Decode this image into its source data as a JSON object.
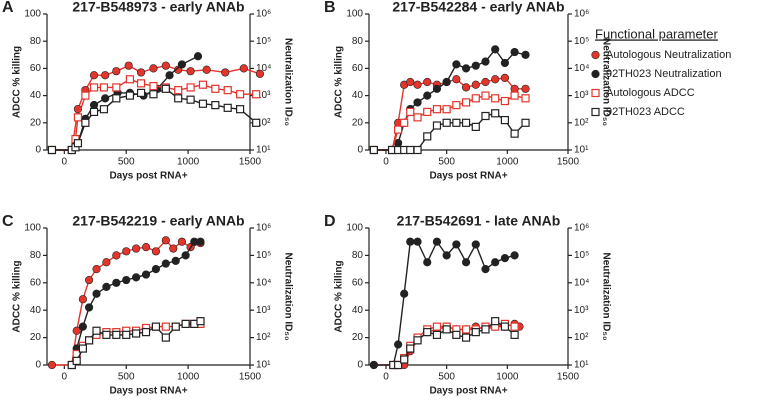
{
  "chart_data": [
    {
      "type": "line",
      "panel": "A",
      "title": "217-B548973 - early ANAb",
      "legend_title": "Functional parameter",
      "xlabel": "Days post RNA+",
      "ylabel": "ADCC % killing",
      "y2label": "Neutralization ID₅₀",
      "xlim": [
        -140,
        1500
      ],
      "xticks": [
        0,
        500,
        1000,
        1500
      ],
      "ylim": [
        0,
        100
      ],
      "yticks": [
        0,
        20,
        40,
        60,
        80,
        100
      ],
      "y2lim": [
        10,
        1000000
      ],
      "y2scale": "log",
      "y2ticks": [
        {
          "value": 10,
          "label": "10¹"
        },
        {
          "value": 100,
          "label": "10²"
        },
        {
          "value": 1000,
          "label": "10³"
        },
        {
          "value": 10000,
          "label": "10⁴"
        },
        {
          "value": 100000,
          "label": "10⁵"
        },
        {
          "value": 1000000,
          "label": "10⁶"
        }
      ],
      "series": [
        {
          "name": "Autologous Neutralization",
          "color": "#e2352b",
          "marker": "filled-circle",
          "axis": "y2",
          "x": [
            -100,
            60,
            110,
            170,
            240,
            330,
            420,
            520,
            620,
            720,
            820,
            920,
            1020,
            1150,
            1300,
            1450,
            1580
          ],
          "values": [
            10,
            10,
            320,
            1600,
            5600,
            5600,
            7900,
            12600,
            7100,
            10000,
            12600,
            8900,
            7900,
            8900,
            7100,
            10000,
            6300
          ]
        },
        {
          "name": "92TH023 Neutralization",
          "color": "#222222",
          "marker": "filled-circle",
          "axis": "y2",
          "x": [
            -100,
            60,
            110,
            170,
            240,
            330,
            430,
            530,
            640,
            750,
            850,
            950,
            1080
          ],
          "values": [
            10,
            10,
            18,
            140,
            450,
            790,
            1260,
            1260,
            1000,
            1780,
            5600,
            14000,
            28000
          ]
        },
        {
          "name": "Autologous ADCC",
          "color": "#e2352b",
          "marker": "open-square",
          "x": [
            -100,
            60,
            90,
            110,
            170,
            240,
            320,
            420,
            530,
            620,
            720,
            820,
            920,
            1020,
            1120,
            1220,
            1320,
            1420,
            1550
          ],
          "values": [
            0,
            0,
            8,
            24,
            40,
            46,
            46,
            46,
            52,
            49,
            47,
            46,
            44,
            46,
            48,
            45,
            44,
            41,
            41
          ]
        },
        {
          "name": "92TH023 ADCC",
          "color": "#222222",
          "marker": "open-square",
          "x": [
            -100,
            60,
            90,
            110,
            170,
            240,
            320,
            420,
            530,
            620,
            720,
            820,
            920,
            1020,
            1120,
            1220,
            1320,
            1420,
            1550
          ],
          "values": [
            0,
            0,
            2,
            5,
            20,
            28,
            30,
            38,
            40,
            42,
            41,
            45,
            38,
            37,
            34,
            33,
            31,
            30,
            20
          ]
        }
      ]
    },
    {
      "type": "line",
      "panel": "B",
      "title": "217-B542284 - early ANAb",
      "xlabel": "Days post RNA+",
      "ylabel": "ADCC % killing",
      "y2label": "Neutralization ID₅₀",
      "xlim": [
        -140,
        1500
      ],
      "xticks": [
        0,
        500,
        1000,
        1500
      ],
      "ylim": [
        0,
        100
      ],
      "yticks": [
        0,
        20,
        40,
        60,
        80,
        100
      ],
      "y2lim": [
        10,
        1000000
      ],
      "y2scale": "log",
      "y2ticks": [
        {
          "value": 10,
          "label": "10¹"
        },
        {
          "value": 100,
          "label": "10²"
        },
        {
          "value": 1000,
          "label": "10³"
        },
        {
          "value": 10000,
          "label": "10⁴"
        },
        {
          "value": 100000,
          "label": "10⁵"
        },
        {
          "value": 1000000,
          "label": "10⁶"
        }
      ],
      "series": [
        {
          "name": "Autologous Neutralization",
          "color": "#e2352b",
          "marker": "filled-circle",
          "axis": "y2",
          "x": [
            -100,
            50,
            100,
            150,
            200,
            260,
            340,
            420,
            500,
            580,
            660,
            740,
            820,
            900,
            980,
            1060,
            1150
          ],
          "values": [
            10,
            10,
            100,
            2500,
            3160,
            2500,
            3160,
            2500,
            3160,
            3980,
            2000,
            2500,
            3160,
            3980,
            4470,
            1780,
            1780
          ]
        },
        {
          "name": "92TH023 Neutralization",
          "color": "#222222",
          "marker": "filled-circle",
          "axis": "y2",
          "x": [
            -100,
            50,
            100,
            150,
            200,
            260,
            340,
            420,
            500,
            580,
            660,
            740,
            820,
            900,
            980,
            1060,
            1150
          ],
          "values": [
            10,
            10,
            18,
            100,
            320,
            560,
            1000,
            1780,
            3160,
            14100,
            10000,
            12600,
            17800,
            50100,
            15800,
            39800,
            31600
          ]
        },
        {
          "name": "Autologous ADCC",
          "color": "#e2352b",
          "marker": "open-square",
          "x": [
            -100,
            50,
            100,
            150,
            200,
            260,
            340,
            420,
            500,
            580,
            660,
            740,
            820,
            900,
            980,
            1060,
            1150
          ],
          "values": [
            0,
            0,
            15,
            20,
            28,
            24,
            28,
            30,
            30,
            33,
            35,
            38,
            40,
            38,
            36,
            40,
            38
          ]
        },
        {
          "name": "92TH023 ADCC",
          "color": "#222222",
          "marker": "open-square",
          "x": [
            -100,
            50,
            100,
            150,
            200,
            260,
            340,
            420,
            500,
            580,
            660,
            740,
            820,
            900,
            980,
            1060,
            1150
          ],
          "values": [
            0,
            0,
            0,
            0,
            0,
            0,
            10,
            18,
            20,
            20,
            20,
            17,
            25,
            27,
            22,
            12,
            20
          ]
        }
      ]
    },
    {
      "type": "line",
      "panel": "C",
      "title": "217-B542219 - early ANAb",
      "xlabel": "Days post RNA+",
      "ylabel": "ADCC % killing",
      "y2label": "Neutralization ID₅₀",
      "xlim": [
        -140,
        1500
      ],
      "xticks": [
        0,
        500,
        1000,
        1500
      ],
      "ylim": [
        0,
        100
      ],
      "yticks": [
        0,
        20,
        40,
        60,
        80,
        100
      ],
      "y2lim": [
        10,
        1000000
      ],
      "y2scale": "log",
      "y2ticks": [
        {
          "value": 10,
          "label": "10¹"
        },
        {
          "value": 100,
          "label": "10²"
        },
        {
          "value": 1000,
          "label": "10³"
        },
        {
          "value": 10000,
          "label": "10⁴"
        },
        {
          "value": 100000,
          "label": "10⁵"
        },
        {
          "value": 1000000,
          "label": "10⁶"
        }
      ],
      "series": [
        {
          "name": "Autologous Neutralization",
          "color": "#e2352b",
          "marker": "filled-circle",
          "axis": "y2",
          "x": [
            -100,
            60,
            100,
            150,
            200,
            260,
            340,
            420,
            500,
            580,
            660,
            740,
            820,
            880,
            950,
            1020,
            1100
          ],
          "values": [
            10,
            10,
            178,
            2510,
            12600,
            31600,
            56200,
            100000,
            141000,
            178000,
            200000,
            141000,
            355000,
            178000,
            316000,
            200000,
            282000
          ]
        },
        {
          "name": "92TH023 Neutralization",
          "color": "#222222",
          "marker": "filled-circle",
          "axis": "y2",
          "x": [
            60,
            100,
            150,
            200,
            260,
            340,
            420,
            500,
            580,
            660,
            740,
            820,
            900,
            980,
            1050,
            1100
          ],
          "values": [
            10,
            40,
            251,
            1260,
            3980,
            7080,
            10000,
            12600,
            15800,
            20000,
            31600,
            50100,
            63100,
            100000,
            316000,
            316000
          ]
        },
        {
          "name": "Autologous ADCC",
          "color": "#e2352b",
          "marker": "open-square",
          "x": [
            60,
            100,
            150,
            200,
            260,
            340,
            420,
            500,
            580,
            660,
            740,
            820,
            900,
            980,
            1050,
            1100
          ],
          "values": [
            0,
            8,
            14,
            18,
            22,
            24,
            24,
            25,
            25,
            27,
            28,
            28,
            28,
            30,
            30,
            30
          ]
        },
        {
          "name": "92TH023 ADCC",
          "color": "#222222",
          "marker": "open-square",
          "x": [
            60,
            100,
            150,
            200,
            260,
            340,
            420,
            500,
            580,
            660,
            740,
            820,
            900,
            980,
            1050,
            1100
          ],
          "values": [
            0,
            3,
            12,
            18,
            25,
            22,
            22,
            22,
            23,
            24,
            28,
            20,
            28,
            30,
            30,
            32
          ]
        }
      ]
    },
    {
      "type": "line",
      "panel": "D",
      "title": "217-B542691 - late ANAb",
      "xlabel": "Days post RNA+",
      "ylabel": "ADCC % killing",
      "y2label": "Neutralization ID₅₀",
      "xlim": [
        -140,
        1500
      ],
      "xticks": [
        0,
        500,
        1000,
        1500
      ],
      "ylim": [
        0,
        100
      ],
      "yticks": [
        0,
        20,
        40,
        60,
        80,
        100
      ],
      "y2lim": [
        10,
        1000000
      ],
      "y2scale": "log",
      "y2ticks": [
        {
          "value": 10,
          "label": "10¹"
        },
        {
          "value": 100,
          "label": "10²"
        },
        {
          "value": 1000,
          "label": "10³"
        },
        {
          "value": 10000,
          "label": "10⁴"
        },
        {
          "value": 100000,
          "label": "10⁵"
        },
        {
          "value": 1000000,
          "label": "10⁶"
        }
      ],
      "series": [
        {
          "name": "Autologous Neutralization",
          "color": "#e2352b",
          "marker": "filled-circle",
          "axis": "y2",
          "x": [
            -100,
            60,
            100,
            150,
            200,
            260,
            340,
            420,
            500,
            580,
            660,
            740,
            820,
            900,
            980,
            1060,
            1100
          ],
          "values": [
            10,
            10,
            10,
            10,
            32,
            79,
            158,
            200,
            251,
            200,
            200,
            251,
            200,
            251,
            251,
            316,
            251
          ]
        },
        {
          "name": "92TH023 Neutralization",
          "color": "#222222",
          "marker": "filled-circle",
          "axis": "y2",
          "x": [
            -100,
            60,
            100,
            150,
            200,
            260,
            340,
            420,
            500,
            580,
            660,
            740,
            820,
            900,
            980,
            1060
          ],
          "values": [
            10,
            10,
            56,
            3980,
            316000,
            316000,
            56200,
            316000,
            100000,
            251000,
            56200,
            251000,
            31600,
            56200,
            79400,
            100000
          ]
        },
        {
          "name": "Autologous ADCC",
          "color": "#e2352b",
          "marker": "open-square",
          "x": [
            60,
            100,
            150,
            200,
            260,
            340,
            420,
            500,
            580,
            660,
            740,
            820,
            900,
            980,
            1060
          ],
          "values": [
            0,
            0,
            5,
            14,
            20,
            26,
            28,
            28,
            26,
            26,
            26,
            28,
            28,
            30,
            28
          ]
        },
        {
          "name": "92TH023 ADCC",
          "color": "#222222",
          "marker": "open-square",
          "x": [
            60,
            100,
            150,
            200,
            260,
            340,
            420,
            500,
            580,
            660,
            740,
            820,
            900,
            980,
            1060
          ],
          "values": [
            0,
            0,
            4,
            12,
            18,
            24,
            22,
            26,
            22,
            20,
            24,
            26,
            32,
            28,
            22
          ]
        }
      ]
    }
  ]
}
